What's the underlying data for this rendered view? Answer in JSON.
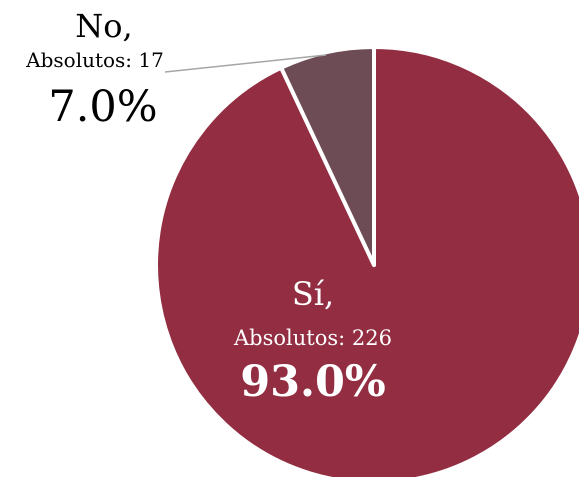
{
  "chart_data": {
    "type": "pie",
    "title": "",
    "slices": [
      {
        "name": "Sí,",
        "absolute_label": "Absolutos: 226",
        "absolute": 226,
        "percent_label": "93.0%",
        "value": 93.0,
        "color": "#922d42"
      },
      {
        "name": "No,",
        "absolute_label": "Absolutos: 17",
        "absolute": 17,
        "percent_label": "7.0%",
        "value": 7.0,
        "color": "#6d4c55"
      }
    ],
    "slice_border_color": "#ffffff",
    "leader_line_color": "#a6a6a6"
  }
}
